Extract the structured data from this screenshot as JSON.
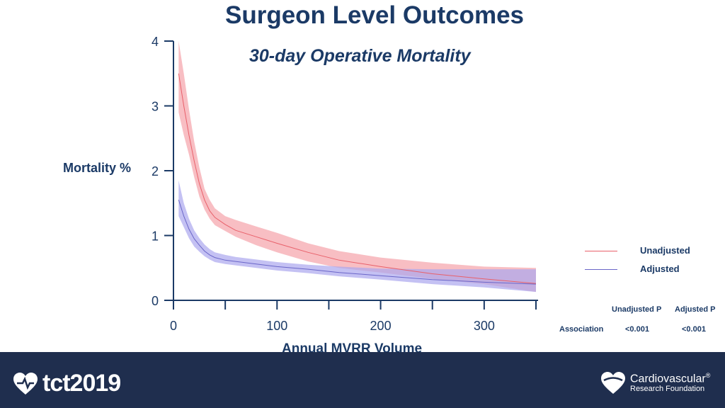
{
  "chart_data": {
    "type": "line",
    "title": "Surgeon Level Outcomes",
    "subtitle": "30-day Operative Mortality",
    "xlabel": "Annual MVRR Volume",
    "ylabel": "Mortality %",
    "xlim": [
      0,
      350
    ],
    "ylim": [
      0,
      4
    ],
    "x_ticks": [
      0,
      100,
      200,
      300
    ],
    "y_ticks": [
      0,
      1,
      2,
      3,
      4
    ],
    "x": [
      5,
      10,
      15,
      20,
      25,
      30,
      35,
      40,
      50,
      60,
      80,
      100,
      130,
      160,
      200,
      250,
      300,
      350
    ],
    "series": [
      {
        "name": "Unadjusted",
        "color": "#e8606a",
        "band_color": "#f5a3aa",
        "values": [
          3.5,
          3.0,
          2.55,
          2.15,
          1.8,
          1.55,
          1.38,
          1.28,
          1.17,
          1.08,
          0.98,
          0.88,
          0.74,
          0.62,
          0.52,
          0.41,
          0.33,
          0.26
        ],
        "lower": [
          2.9,
          2.55,
          2.25,
          1.9,
          1.6,
          1.4,
          1.26,
          1.16,
          1.07,
          0.98,
          0.85,
          0.74,
          0.6,
          0.5,
          0.43,
          0.33,
          0.25,
          0.13
        ],
        "upper": [
          4.0,
          3.5,
          2.95,
          2.45,
          2.05,
          1.72,
          1.55,
          1.42,
          1.3,
          1.24,
          1.14,
          1.04,
          0.88,
          0.76,
          0.66,
          0.58,
          0.52,
          0.5
        ]
      },
      {
        "name": "Adjusted",
        "color": "#6a66c8",
        "band_color": "#aba6ee",
        "values": [
          1.55,
          1.3,
          1.1,
          0.95,
          0.85,
          0.76,
          0.7,
          0.66,
          0.62,
          0.6,
          0.56,
          0.52,
          0.48,
          0.43,
          0.38,
          0.32,
          0.28,
          0.25
        ],
        "lower": [
          1.3,
          1.13,
          0.96,
          0.83,
          0.75,
          0.68,
          0.63,
          0.59,
          0.56,
          0.54,
          0.5,
          0.46,
          0.42,
          0.37,
          0.32,
          0.25,
          0.2,
          0.13
        ],
        "upper": [
          1.85,
          1.5,
          1.26,
          1.08,
          0.96,
          0.86,
          0.79,
          0.74,
          0.7,
          0.67,
          0.63,
          0.59,
          0.55,
          0.52,
          0.49,
          0.48,
          0.48,
          0.48
        ]
      }
    ],
    "legend_position": "right"
  },
  "legend": [
    {
      "label": "Unadjusted",
      "color": "#e8606a"
    },
    {
      "label": "Adjusted",
      "color": "#6a66c8"
    }
  ],
  "pvalues": {
    "headers": [
      "Unadjusted P",
      "Adjusted P"
    ],
    "row_label": "Association",
    "values": [
      "<0.001",
      "<0.001"
    ]
  },
  "footer": {
    "left_logo": "tct2019",
    "right_logo_line1": "Cardiovascular",
    "right_logo_mark": "®",
    "right_logo_line2": "Research Foundation",
    "background": "#1f2e4e"
  }
}
